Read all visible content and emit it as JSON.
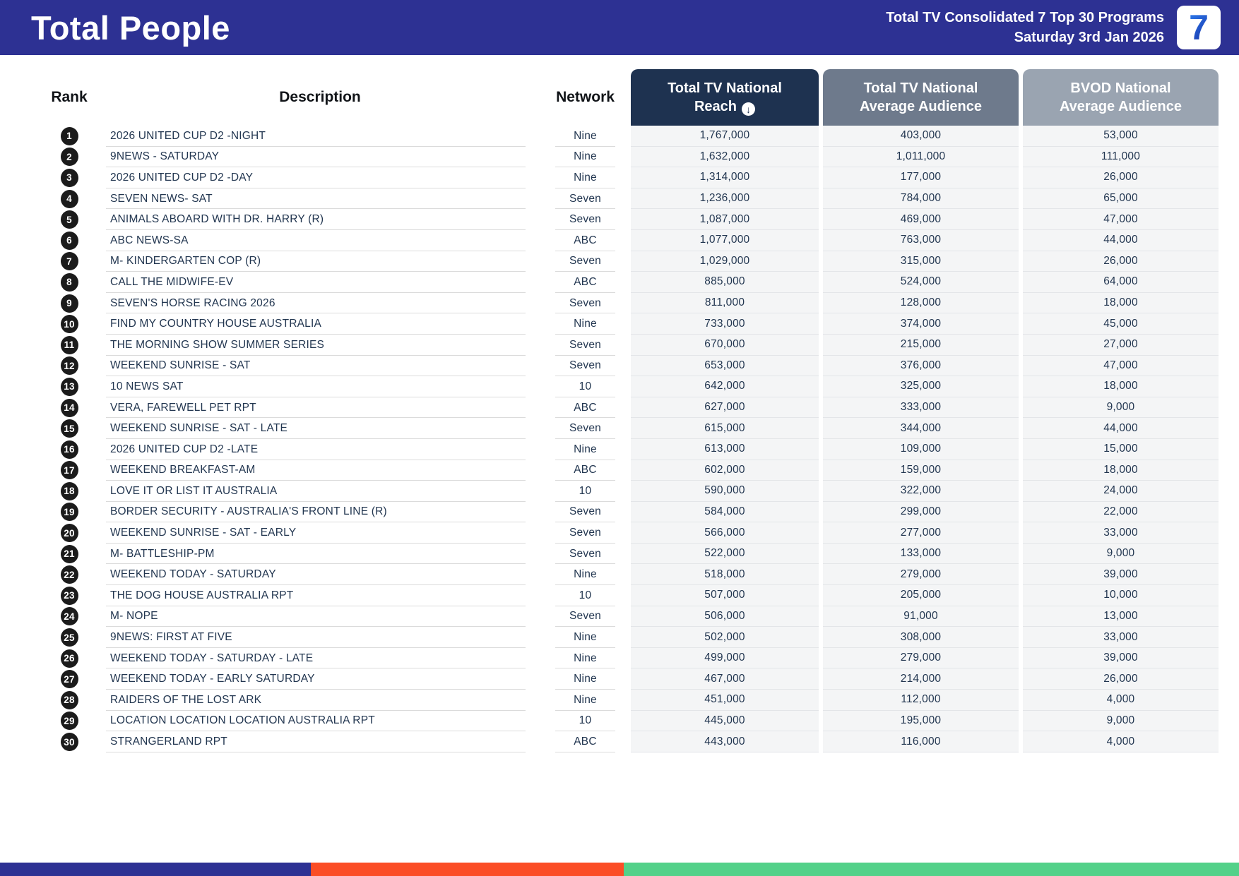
{
  "header": {
    "title": "Total People",
    "subtitle_line1": "Total TV Consolidated 7 Top 30 Programs",
    "subtitle_line2": "Saturday 3rd Jan 2026",
    "logo_text": "7"
  },
  "colors": {
    "banner_bg": "#2D3193",
    "reach_header_bg": "#1E3250",
    "avg_header_bg": "#6E7A8C",
    "bvod_header_bg": "#9AA4B1",
    "footer_blue": "#2D3193",
    "footer_orange": "#FB4D26",
    "footer_green": "#53D189"
  },
  "icons": {
    "sort_descending_glyph": "↓",
    "seven_logo_glyph": "7"
  },
  "columns": {
    "rank_label": "Rank",
    "description_label": "Description",
    "network_label": "Network",
    "reach_label": "Total TV National Reach",
    "avg_label": "Total TV National Average Audience",
    "bvod_label": "BVOD National Average Audience"
  },
  "table": {
    "rows": [
      {
        "rank": "1",
        "description": "2026 UNITED CUP D2 -NIGHT",
        "network": "Nine",
        "reach": "1,767,000",
        "avg": "403,000",
        "bvod": "53,000"
      },
      {
        "rank": "2",
        "description": "9NEWS - SATURDAY",
        "network": "Nine",
        "reach": "1,632,000",
        "avg": "1,011,000",
        "bvod": "111,000"
      },
      {
        "rank": "3",
        "description": "2026 UNITED CUP D2 -DAY",
        "network": "Nine",
        "reach": "1,314,000",
        "avg": "177,000",
        "bvod": "26,000"
      },
      {
        "rank": "4",
        "description": "SEVEN NEWS- SAT",
        "network": "Seven",
        "reach": "1,236,000",
        "avg": "784,000",
        "bvod": "65,000"
      },
      {
        "rank": "5",
        "description": "ANIMALS ABOARD WITH DR. HARRY (R)",
        "network": "Seven",
        "reach": "1,087,000",
        "avg": "469,000",
        "bvod": "47,000"
      },
      {
        "rank": "6",
        "description": "ABC NEWS-SA",
        "network": "ABC",
        "reach": "1,077,000",
        "avg": "763,000",
        "bvod": "44,000"
      },
      {
        "rank": "7",
        "description": "M- KINDERGARTEN COP (R)",
        "network": "Seven",
        "reach": "1,029,000",
        "avg": "315,000",
        "bvod": "26,000"
      },
      {
        "rank": "8",
        "description": "CALL THE MIDWIFE-EV",
        "network": "ABC",
        "reach": "885,000",
        "avg": "524,000",
        "bvod": "64,000"
      },
      {
        "rank": "9",
        "description": "SEVEN'S HORSE RACING 2026",
        "network": "Seven",
        "reach": "811,000",
        "avg": "128,000",
        "bvod": "18,000"
      },
      {
        "rank": "10",
        "description": "FIND MY COUNTRY HOUSE AUSTRALIA",
        "network": "Nine",
        "reach": "733,000",
        "avg": "374,000",
        "bvod": "45,000"
      },
      {
        "rank": "11",
        "description": "THE MORNING SHOW SUMMER SERIES",
        "network": "Seven",
        "reach": "670,000",
        "avg": "215,000",
        "bvod": "27,000"
      },
      {
        "rank": "12",
        "description": "WEEKEND SUNRISE - SAT",
        "network": "Seven",
        "reach": "653,000",
        "avg": "376,000",
        "bvod": "47,000"
      },
      {
        "rank": "13",
        "description": "10 NEWS SAT",
        "network": "10",
        "reach": "642,000",
        "avg": "325,000",
        "bvod": "18,000"
      },
      {
        "rank": "14",
        "description": "VERA, FAREWELL PET RPT",
        "network": "ABC",
        "reach": "627,000",
        "avg": "333,000",
        "bvod": "9,000"
      },
      {
        "rank": "15",
        "description": "WEEKEND SUNRISE - SAT - LATE",
        "network": "Seven",
        "reach": "615,000",
        "avg": "344,000",
        "bvod": "44,000"
      },
      {
        "rank": "16",
        "description": "2026 UNITED CUP D2 -LATE",
        "network": "Nine",
        "reach": "613,000",
        "avg": "109,000",
        "bvod": "15,000"
      },
      {
        "rank": "17",
        "description": "WEEKEND BREAKFAST-AM",
        "network": "ABC",
        "reach": "602,000",
        "avg": "159,000",
        "bvod": "18,000"
      },
      {
        "rank": "18",
        "description": "LOVE IT OR LIST IT AUSTRALIA",
        "network": "10",
        "reach": "590,000",
        "avg": "322,000",
        "bvod": "24,000"
      },
      {
        "rank": "19",
        "description": "BORDER SECURITY - AUSTRALIA'S FRONT LINE (R)",
        "network": "Seven",
        "reach": "584,000",
        "avg": "299,000",
        "bvod": "22,000"
      },
      {
        "rank": "20",
        "description": "WEEKEND SUNRISE - SAT - EARLY",
        "network": "Seven",
        "reach": "566,000",
        "avg": "277,000",
        "bvod": "33,000"
      },
      {
        "rank": "21",
        "description": "M- BATTLESHIP-PM",
        "network": "Seven",
        "reach": "522,000",
        "avg": "133,000",
        "bvod": "9,000"
      },
      {
        "rank": "22",
        "description": "WEEKEND TODAY - SATURDAY",
        "network": "Nine",
        "reach": "518,000",
        "avg": "279,000",
        "bvod": "39,000"
      },
      {
        "rank": "23",
        "description": "THE DOG HOUSE AUSTRALIA RPT",
        "network": "10",
        "reach": "507,000",
        "avg": "205,000",
        "bvod": "10,000"
      },
      {
        "rank": "24",
        "description": "M- NOPE",
        "network": "Seven",
        "reach": "506,000",
        "avg": "91,000",
        "bvod": "13,000"
      },
      {
        "rank": "25",
        "description": "9NEWS: FIRST AT FIVE",
        "network": "Nine",
        "reach": "502,000",
        "avg": "308,000",
        "bvod": "33,000"
      },
      {
        "rank": "26",
        "description": "WEEKEND TODAY - SATURDAY - LATE",
        "network": "Nine",
        "reach": "499,000",
        "avg": "279,000",
        "bvod": "39,000"
      },
      {
        "rank": "27",
        "description": "WEEKEND TODAY - EARLY SATURDAY",
        "network": "Nine",
        "reach": "467,000",
        "avg": "214,000",
        "bvod": "26,000"
      },
      {
        "rank": "28",
        "description": "RAIDERS OF THE LOST ARK",
        "network": "Nine",
        "reach": "451,000",
        "avg": "112,000",
        "bvod": "4,000"
      },
      {
        "rank": "29",
        "description": "LOCATION LOCATION LOCATION AUSTRALIA RPT",
        "network": "10",
        "reach": "445,000",
        "avg": "195,000",
        "bvod": "9,000"
      },
      {
        "rank": "30",
        "description": "STRANGERLAND RPT",
        "network": "ABC",
        "reach": "443,000",
        "avg": "116,000",
        "bvod": "4,000"
      }
    ]
  }
}
